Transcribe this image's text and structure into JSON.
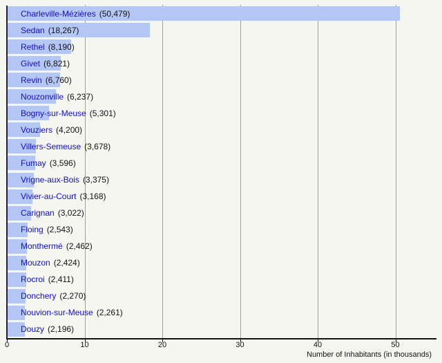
{
  "page": {
    "background_color": "#f6f6f1"
  },
  "chart_data": {
    "type": "bar",
    "orientation": "horizontal",
    "title": "",
    "xlabel": "Number of Inhabitants (in thousands)",
    "ylabel": "",
    "xlim": [
      0,
      55.1
    ],
    "grid": true,
    "legend": "none",
    "bar_color": "#b4c7f4",
    "y_axis_color": "#1c1c50",
    "x_axis_color": "#111111",
    "gridline_color": "#9aa095",
    "city_link_color": "#0f0fc8",
    "value_text_color": "#111111",
    "xticks": [
      {
        "value": 0,
        "label": "0"
      },
      {
        "value": 10,
        "label": "10"
      },
      {
        "value": 20,
        "label": "20"
      },
      {
        "value": 30,
        "label": "30"
      },
      {
        "value": 40,
        "label": "40"
      },
      {
        "value": 50,
        "label": "50"
      }
    ],
    "categories": [
      "Charleville-Mézières",
      "Sedan",
      "Rethel",
      "Givet",
      "Revin",
      "Nouzonville",
      "Bogny-sur-Meuse",
      "Vouziers",
      "Villers-Semeuse",
      "Fumay",
      "Vrigne-aux-Bois",
      "Vivier-au-Court",
      "Carignan",
      "Floing",
      "Monthermé",
      "Mouzon",
      "Rocroi",
      "Donchery",
      "Nouvion-sur-Meuse",
      "Douzy"
    ],
    "values": [
      50479,
      18267,
      8190,
      6821,
      6760,
      6237,
      5301,
      4200,
      3678,
      3596,
      3375,
      3168,
      3022,
      2543,
      2462,
      2424,
      2411,
      2270,
      2261,
      2196
    ],
    "items": [
      {
        "name": "Charleville-Mézières",
        "value": 50479,
        "pop_display": "(50,479)"
      },
      {
        "name": "Sedan",
        "value": 18267,
        "pop_display": "(18,267)"
      },
      {
        "name": "Rethel",
        "value": 8190,
        "pop_display": "(8,190)"
      },
      {
        "name": "Givet",
        "value": 6821,
        "pop_display": "(6,821)"
      },
      {
        "name": "Revin",
        "value": 6760,
        "pop_display": "(6,760)"
      },
      {
        "name": "Nouzonville",
        "value": 6237,
        "pop_display": "(6,237)"
      },
      {
        "name": "Bogny-sur-Meuse",
        "value": 5301,
        "pop_display": "(5,301)"
      },
      {
        "name": "Vouziers",
        "value": 4200,
        "pop_display": "(4,200)"
      },
      {
        "name": "Villers-Semeuse",
        "value": 3678,
        "pop_display": "(3,678)"
      },
      {
        "name": "Fumay",
        "value": 3596,
        "pop_display": "(3,596)"
      },
      {
        "name": "Vrigne-aux-Bois",
        "value": 3375,
        "pop_display": "(3,375)"
      },
      {
        "name": "Vivier-au-Court",
        "value": 3168,
        "pop_display": "(3,168)"
      },
      {
        "name": "Carignan",
        "value": 3022,
        "pop_display": "(3,022)"
      },
      {
        "name": "Floing",
        "value": 2543,
        "pop_display": "(2,543)"
      },
      {
        "name": "Monthermé",
        "value": 2462,
        "pop_display": "(2,462)"
      },
      {
        "name": "Mouzon",
        "value": 2424,
        "pop_display": "(2,424)"
      },
      {
        "name": "Rocroi",
        "value": 2411,
        "pop_display": "(2,411)"
      },
      {
        "name": "Donchery",
        "value": 2270,
        "pop_display": "(2,270)"
      },
      {
        "name": "Nouvion-sur-Meuse",
        "value": 2261,
        "pop_display": "(2,261)"
      },
      {
        "name": "Douzy",
        "value": 2196,
        "pop_display": "(2,196)"
      }
    ]
  }
}
